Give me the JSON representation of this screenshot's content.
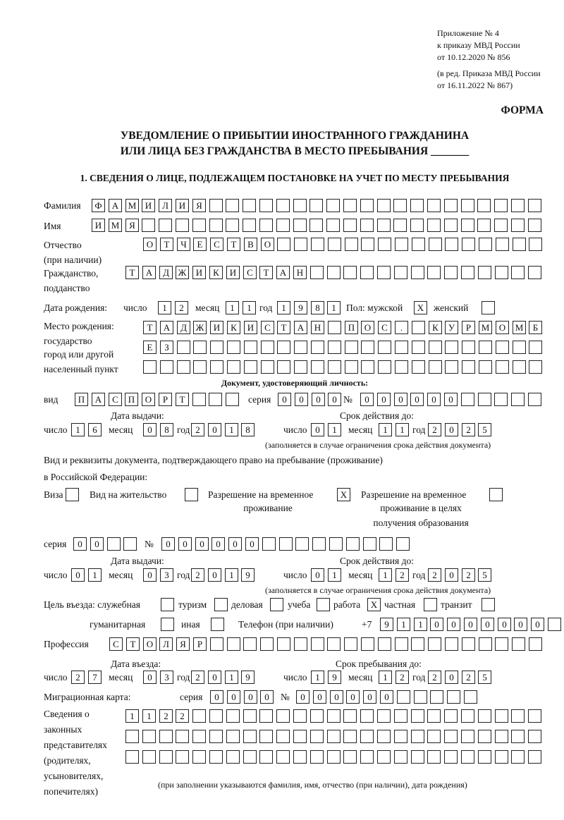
{
  "header": {
    "appendix": [
      "Приложение № 4",
      "к приказу МВД России",
      "от 10.12.2020 № 856"
    ],
    "revision": [
      "(в ред. Приказа МВД России",
      "от 16.11.2022 № 867)"
    ],
    "form_label": "ФОРМА",
    "title": [
      "УВЕДОМЛЕНИЕ О ПРИБЫТИИ ИНОСТРАННОГО ГРАЖДАНИНА",
      "ИЛИ ЛИЦА БЕЗ ГРАЖДАНСТВА В МЕСТО ПРЕБЫВАНИЯ _______"
    ]
  },
  "section1": {
    "heading": "1. СВЕДЕНИЯ О ЛИЦЕ, ПОДЛЕЖАЩЕМ ПОСТАНОВКЕ НА УЧЕТ ПО МЕСТУ ПРЕБЫВАНИЯ",
    "labels": {
      "surname": "Фамилия",
      "name": "Имя",
      "patronymic": "Отчество",
      "patronymic_note": "(при наличии)",
      "citizenship": "Гражданство,",
      "citizenship_2": "подданство",
      "birth_date": "Дата рождения:",
      "day": "число",
      "month": "месяц",
      "year": "год",
      "sex_male": "Пол: мужской",
      "sex_female": "женский",
      "birthplace": [
        "Место рождения:",
        "государство",
        "город или другой",
        "населенный пункт"
      ],
      "id_document": "Документ, удостоверяющий личность:",
      "doc_type": "вид",
      "series": "серия",
      "number": "№",
      "issue_date": "Дата выдачи:",
      "valid_until": "Срок действия до:",
      "validity_note": "(заполняется в случае ограничения срока действия документа)",
      "permit_doc": "Вид и реквизиты документа, подтверждающего право на пребывание (проживание)",
      "permit_doc_2": "в Российской Федерации:",
      "visa": "Виза",
      "residence": "Вид на жительство",
      "temp_residence": [
        "Разрешение на временное",
        "проживание"
      ],
      "temp_residence_edu": [
        "Разрешение на временное",
        "проживание в целях",
        "получения образования"
      ],
      "purpose": "Цель въезда: служебная",
      "tourism": "туризм",
      "business": "деловая",
      "study": "учеба",
      "work": "работа",
      "private": "частная",
      "transit": "транзит",
      "humanitarian": "гуманитарная",
      "other": "иная",
      "phone": "Телефон (при наличии)",
      "phone_prefix": "+7",
      "profession": "Профессия",
      "entry_date": "Дата въезда:",
      "stay_until": "Срок пребывания до:",
      "migration_card": "Миграционная карта:",
      "representatives": [
        "Сведения о",
        "законных",
        "представителях",
        "(родителях,",
        "усыновителях,",
        "попечителях)"
      ],
      "representatives_note": "(при заполнении указываются фамилия, имя, отчество (при наличии), дата рождения)"
    },
    "fields": {
      "surname": "ФАМИЛИЯ",
      "name": "ИМЯ",
      "patronymic": "ОТЧЕСТВО",
      "citizenship": "ТАДЖИКИСТАН",
      "birth_day": "12",
      "birth_month": "11",
      "birth_year": "1981",
      "sex_male": "X",
      "sex_female": "",
      "birthplace_1": "ТАДЖИКИСТАН ПОС. КУРМОМБ",
      "birthplace_2": "ЕЗ",
      "birthplace_3": "",
      "doc_type": "ПАСПОРТ",
      "doc_series": "0000",
      "doc_number": "000000",
      "doc_issue_day": "16",
      "doc_issue_month": "08",
      "doc_issue_year": "2018",
      "doc_expiry_day": "01",
      "doc_expiry_month": "11",
      "doc_expiry_year": "2025",
      "permit_visa": "",
      "permit_residence": "",
      "permit_temp": "X",
      "permit_temp_edu": "",
      "permit_series": "00",
      "permit_number": "000000",
      "permit_issue_day": "01",
      "permit_issue_month": "03",
      "permit_issue_year": "2019",
      "permit_expiry_day": "01",
      "permit_expiry_month": "12",
      "permit_expiry_year": "2025",
      "purpose_official": "",
      "purpose_tourism": "",
      "purpose_business": "",
      "purpose_study": "",
      "purpose_work": "X",
      "purpose_private": "",
      "purpose_transit": "",
      "purpose_humanitarian": "",
      "purpose_other": "",
      "phone": "9110000000",
      "profession": "СТОЛЯР",
      "entry_day": "27",
      "entry_month": "03",
      "entry_year": "2019",
      "stay_day": "19",
      "stay_month": "12",
      "stay_year": "2025",
      "migration_series": "0000",
      "migration_number": "000000",
      "representatives_1": "1122",
      "representatives_2": "",
      "representatives_3": ""
    }
  }
}
